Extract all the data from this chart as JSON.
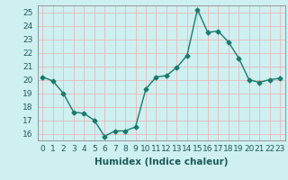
{
  "x": [
    0,
    1,
    2,
    3,
    4,
    5,
    6,
    7,
    8,
    9,
    10,
    11,
    12,
    13,
    14,
    15,
    16,
    17,
    18,
    19,
    20,
    21,
    22,
    23
  ],
  "y": [
    20.2,
    19.9,
    19.0,
    17.6,
    17.5,
    17.0,
    15.8,
    16.2,
    16.2,
    16.5,
    19.3,
    20.2,
    20.3,
    20.9,
    21.8,
    25.2,
    23.5,
    23.6,
    22.8,
    21.6,
    20.0,
    19.8,
    20.0,
    20.1
  ],
  "line_color": "#1a7a6e",
  "marker": "D",
  "marker_size": 2.5,
  "bg_color": "#cff0f0",
  "grid_color": "#e8b8b8",
  "xlabel": "Humidex (Indice chaleur)",
  "xlim": [
    -0.5,
    23.5
  ],
  "ylim": [
    15.5,
    25.5
  ],
  "yticks": [
    16,
    17,
    18,
    19,
    20,
    21,
    22,
    23,
    24,
    25
  ],
  "xticks": [
    0,
    1,
    2,
    3,
    4,
    5,
    6,
    7,
    8,
    9,
    10,
    11,
    12,
    13,
    14,
    15,
    16,
    17,
    18,
    19,
    20,
    21,
    22,
    23
  ],
  "xlabel_fontsize": 7.5,
  "tick_fontsize": 6.5,
  "linewidth": 1.0,
  "text_color": "#1a5a5a"
}
